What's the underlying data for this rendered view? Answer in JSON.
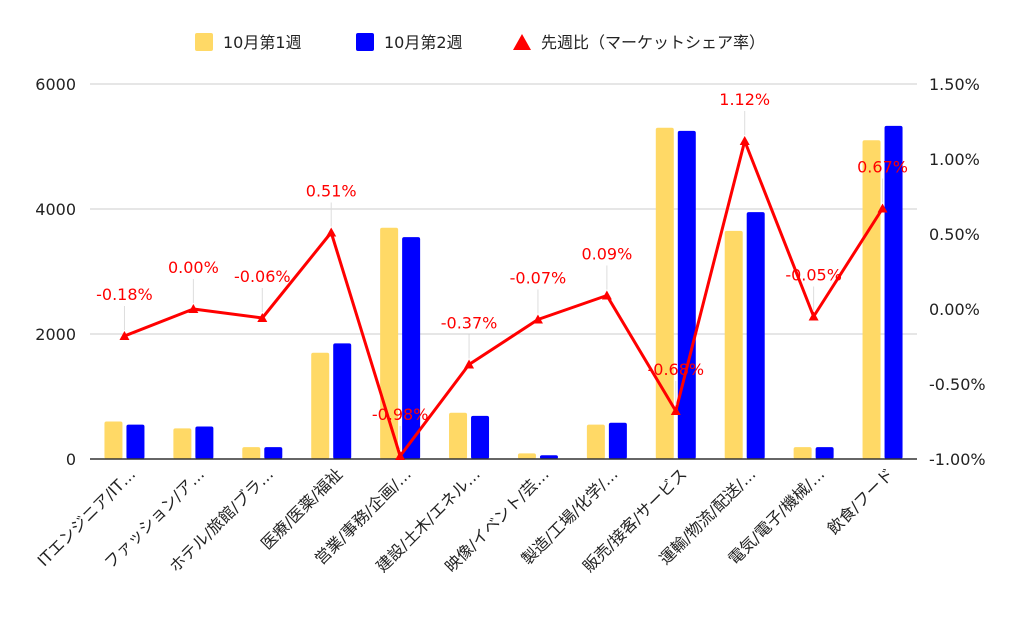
{
  "chart_data": {
    "type": "bar",
    "categories": [
      "ITエンジニア/IT…",
      "ファッション/ア…",
      "ホテル/旅館/ブラ…",
      "医療/医薬/福祉",
      "営業/事務/企画/…",
      "建設/土木/エネル…",
      "映像/イベント/芸…",
      "製造/工場/化学/…",
      "販売/接客/サービス",
      "運輸/物流/配送/…",
      "電気/電子/機械/…",
      "飲食/フード"
    ],
    "series": [
      {
        "name": "10月第1週",
        "type": "bar",
        "axis": "left",
        "color": "#FFD966",
        "values": [
          600,
          490,
          190,
          1700,
          3700,
          740,
          90,
          550,
          5300,
          3650,
          190,
          5100
        ]
      },
      {
        "name": "10月第2週",
        "type": "bar",
        "axis": "left",
        "color": "#0000FF",
        "values": [
          550,
          520,
          190,
          1850,
          3550,
          690,
          60,
          580,
          5250,
          3950,
          190,
          5330
        ]
      },
      {
        "name": "先週比（マーケットシェア率）",
        "type": "line",
        "axis": "right",
        "color": "#FF0000",
        "values": [
          -0.18,
          0.0,
          -0.06,
          0.51,
          -0.98,
          -0.37,
          -0.07,
          0.09,
          -0.68,
          1.12,
          -0.05,
          0.67
        ],
        "labels": [
          "-0.18%",
          "0.00%",
          "-0.06%",
          "0.51%",
          "-0.98%",
          "-0.37%",
          "-0.07%",
          "0.09%",
          "-0.68%",
          "1.12%",
          "-0.05%",
          "0.67%"
        ]
      }
    ],
    "left_axis": {
      "min": 0,
      "max": 6000,
      "ticks": [
        "0",
        "2000",
        "4000",
        "6000"
      ]
    },
    "right_axis": {
      "min": -1.0,
      "max": 1.5,
      "ticks": [
        "-1.00%",
        "-0.50%",
        "0.00%",
        "0.50%",
        "1.00%",
        "1.50%"
      ]
    },
    "legend_position": "top",
    "grid": true
  }
}
